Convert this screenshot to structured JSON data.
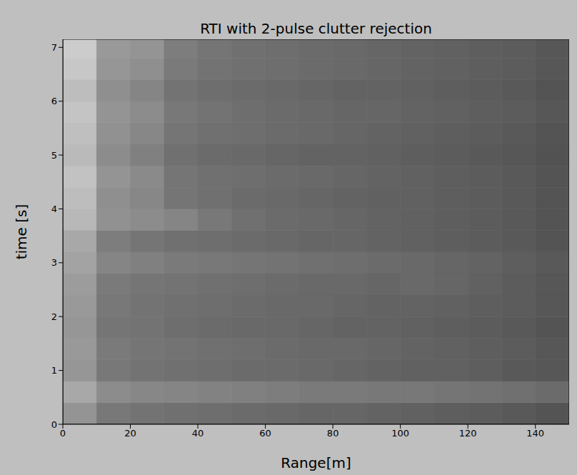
{
  "chart_data": {
    "type": "heatmap",
    "title": "RTI with 2-pulse clutter rejection",
    "x_label": "Range[m]",
    "y_label": "time [s]",
    "xlim": [
      0,
      150
    ],
    "ylim": [
      0,
      7.15
    ],
    "xticks": [
      0,
      20,
      40,
      60,
      80,
      100,
      120,
      140
    ],
    "yticks": [
      0,
      1,
      2,
      3,
      4,
      5,
      6,
      7
    ],
    "zlim": [
      0,
      1
    ],
    "x_edges": [
      0,
      10,
      20,
      30,
      40,
      50,
      60,
      70,
      80,
      90,
      100,
      110,
      120,
      130,
      140,
      150
    ],
    "y_edges": [
      0,
      0.4,
      0.8,
      1.2,
      1.6,
      2.0,
      2.4,
      2.8,
      3.2,
      3.6,
      4.0,
      4.4,
      4.8,
      5.2,
      5.6,
      6.0,
      6.4,
      6.8,
      7.15
    ],
    "cells": [
      [
        0.58,
        0.47,
        0.45,
        0.44,
        0.43,
        0.42,
        0.41,
        0.4,
        0.4,
        0.39,
        0.38,
        0.37,
        0.36,
        0.35,
        0.33
      ],
      [
        0.66,
        0.55,
        0.53,
        0.52,
        0.51,
        0.5,
        0.49,
        0.48,
        0.48,
        0.47,
        0.47,
        0.46,
        0.45,
        0.44,
        0.42
      ],
      [
        0.59,
        0.47,
        0.45,
        0.44,
        0.43,
        0.42,
        0.42,
        0.41,
        0.4,
        0.39,
        0.38,
        0.38,
        0.37,
        0.35,
        0.34
      ],
      [
        0.6,
        0.48,
        0.46,
        0.45,
        0.44,
        0.43,
        0.42,
        0.41,
        0.41,
        0.4,
        0.39,
        0.38,
        0.37,
        0.36,
        0.34
      ],
      [
        0.59,
        0.46,
        0.45,
        0.43,
        0.42,
        0.41,
        0.41,
        0.4,
        0.39,
        0.39,
        0.38,
        0.37,
        0.36,
        0.35,
        0.33
      ],
      [
        0.6,
        0.47,
        0.45,
        0.44,
        0.43,
        0.42,
        0.41,
        0.41,
        0.4,
        0.39,
        0.39,
        0.38,
        0.37,
        0.36,
        0.34
      ],
      [
        0.61,
        0.48,
        0.46,
        0.45,
        0.44,
        0.43,
        0.42,
        0.41,
        0.41,
        0.4,
        0.41,
        0.4,
        0.38,
        0.36,
        0.34
      ],
      [
        0.64,
        0.52,
        0.5,
        0.48,
        0.47,
        0.46,
        0.45,
        0.44,
        0.43,
        0.42,
        0.41,
        0.4,
        0.39,
        0.37,
        0.35
      ],
      [
        0.66,
        0.49,
        0.46,
        0.44,
        0.43,
        0.42,
        0.41,
        0.4,
        0.4,
        0.39,
        0.38,
        0.37,
        0.36,
        0.35,
        0.33
      ],
      [
        0.72,
        0.57,
        0.55,
        0.52,
        0.47,
        0.44,
        0.42,
        0.41,
        0.4,
        0.39,
        0.38,
        0.37,
        0.36,
        0.35,
        0.33
      ],
      [
        0.74,
        0.56,
        0.53,
        0.46,
        0.44,
        0.42,
        0.41,
        0.4,
        0.39,
        0.38,
        0.38,
        0.37,
        0.36,
        0.35,
        0.33
      ],
      [
        0.76,
        0.58,
        0.54,
        0.46,
        0.44,
        0.43,
        0.42,
        0.41,
        0.4,
        0.39,
        0.38,
        0.37,
        0.36,
        0.35,
        0.33
      ],
      [
        0.73,
        0.55,
        0.5,
        0.44,
        0.42,
        0.41,
        0.4,
        0.39,
        0.39,
        0.38,
        0.37,
        0.36,
        0.35,
        0.34,
        0.32
      ],
      [
        0.75,
        0.57,
        0.53,
        0.46,
        0.44,
        0.43,
        0.42,
        0.41,
        0.4,
        0.39,
        0.38,
        0.37,
        0.36,
        0.35,
        0.33
      ],
      [
        0.77,
        0.58,
        0.55,
        0.47,
        0.45,
        0.43,
        0.42,
        0.41,
        0.4,
        0.4,
        0.39,
        0.38,
        0.37,
        0.36,
        0.34
      ],
      [
        0.74,
        0.56,
        0.52,
        0.45,
        0.43,
        0.42,
        0.41,
        0.4,
        0.39,
        0.39,
        0.38,
        0.37,
        0.36,
        0.35,
        0.33
      ],
      [
        0.78,
        0.59,
        0.56,
        0.48,
        0.45,
        0.44,
        0.43,
        0.42,
        0.41,
        0.4,
        0.39,
        0.38,
        0.37,
        0.36,
        0.34
      ],
      [
        0.8,
        0.6,
        0.58,
        0.49,
        0.46,
        0.44,
        0.43,
        0.42,
        0.41,
        0.4,
        0.39,
        0.38,
        0.37,
        0.36,
        0.34
      ]
    ]
  }
}
